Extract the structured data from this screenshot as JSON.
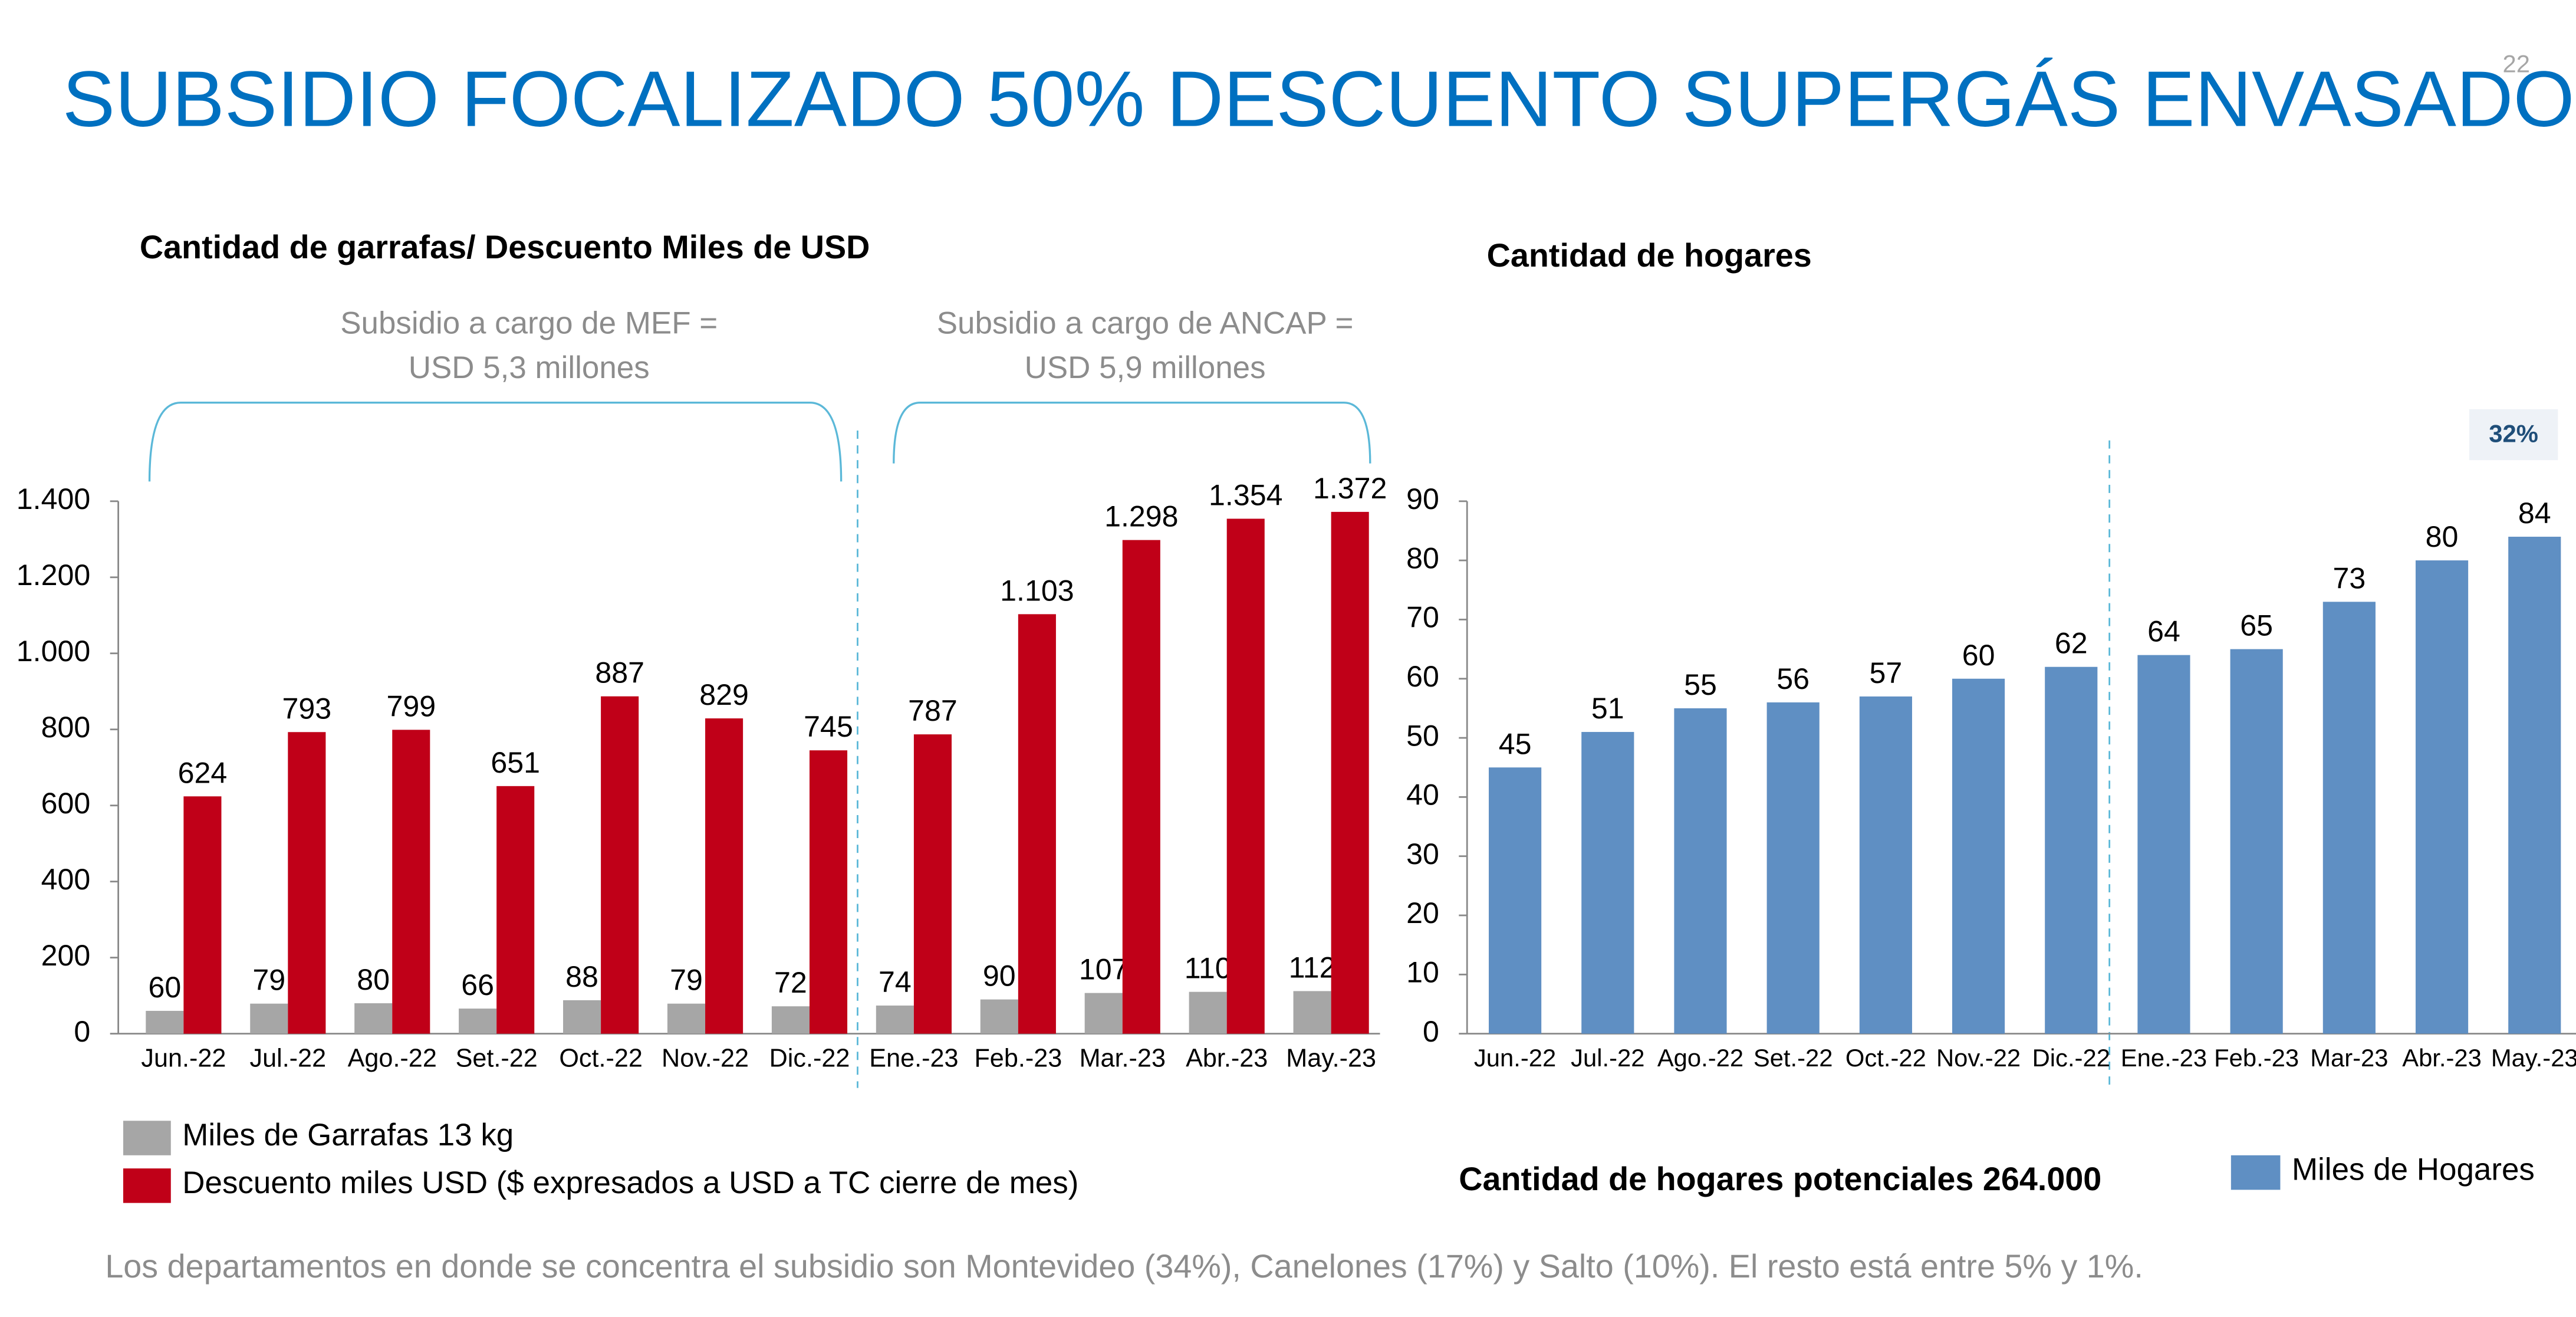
{
  "page_number": "22",
  "title": "SUBSIDIO FOCALIZADO 50% DESCUENTO SUPERGÁS ENVASADO",
  "footnote": "Los departamentos en donde se concentra el subsidio son Montevideo (34%), Canelones  (17%) y Salto (10%). El resto está entre 5% y 1%.",
  "chart_data": [
    {
      "type": "bar",
      "title": "Cantidad de garrafas/ Descuento Miles de USD",
      "annotations": [
        [
          "Subsidio a cargo de MEF =",
          "USD 5,3 millones"
        ],
        [
          "Subsidio a cargo de ANCAP =",
          "USD 5,9 millones"
        ]
      ],
      "categories": [
        "Jun.-22",
        "Jul.-22",
        "Ago.-22",
        "Set.-22",
        "Oct.-22",
        "Nov.-22",
        "Dic.-22",
        "Ene.-23",
        "Feb.-23",
        "Mar.-23",
        "Abr.-23",
        "May.-23"
      ],
      "series": [
        {
          "name": "Miles de Garrafas 13 kg",
          "color": "#a6a6a6",
          "values": [
            60,
            79,
            80,
            66,
            88,
            79,
            72,
            74,
            90,
            107,
            110,
            112
          ]
        },
        {
          "name": "Descuento miles USD ($ expresados a USD a TC cierre de mes)",
          "color": "#c00018",
          "values": [
            624,
            793,
            799,
            651,
            887,
            829,
            745,
            787,
            1103,
            1298,
            1354,
            1372
          ],
          "value_labels": [
            "624",
            "793",
            "799",
            "651",
            "887",
            "829",
            "745",
            "787",
            "1.103",
            "1.298",
            "1.354",
            "1.372"
          ]
        }
      ],
      "ylim": [
        0,
        1400
      ],
      "yticks": [
        0,
        200,
        400,
        600,
        800,
        {
          "value": 1000,
          "label": "1.000"
        },
        {
          "value": 1200,
          "label": "1.200"
        },
        {
          "value": 1400,
          "label": "1.400"
        }
      ]
    },
    {
      "type": "bar",
      "title": "Cantidad de hogares",
      "badge": "32%",
      "note": "Cantidad de hogares potenciales 264.000",
      "categories": [
        "Jun.-22",
        "Jul.-22",
        "Ago.-22",
        "Set.-22",
        "Oct.-22",
        "Nov.-22",
        "Dic.-22",
        "Ene.-23",
        "Feb.-23",
        "Mar-23",
        "Abr.-23",
        "May.-23"
      ],
      "series": [
        {
          "name": "Miles de  Hogares",
          "color": "#5f8fc3",
          "values": [
            45,
            51,
            55,
            56,
            57,
            60,
            62,
            64,
            65,
            73,
            80,
            84
          ]
        }
      ],
      "ylim": [
        0,
        90
      ],
      "yticks": [
        0,
        10,
        20,
        30,
        40,
        50,
        60,
        70,
        80,
        90
      ]
    }
  ]
}
